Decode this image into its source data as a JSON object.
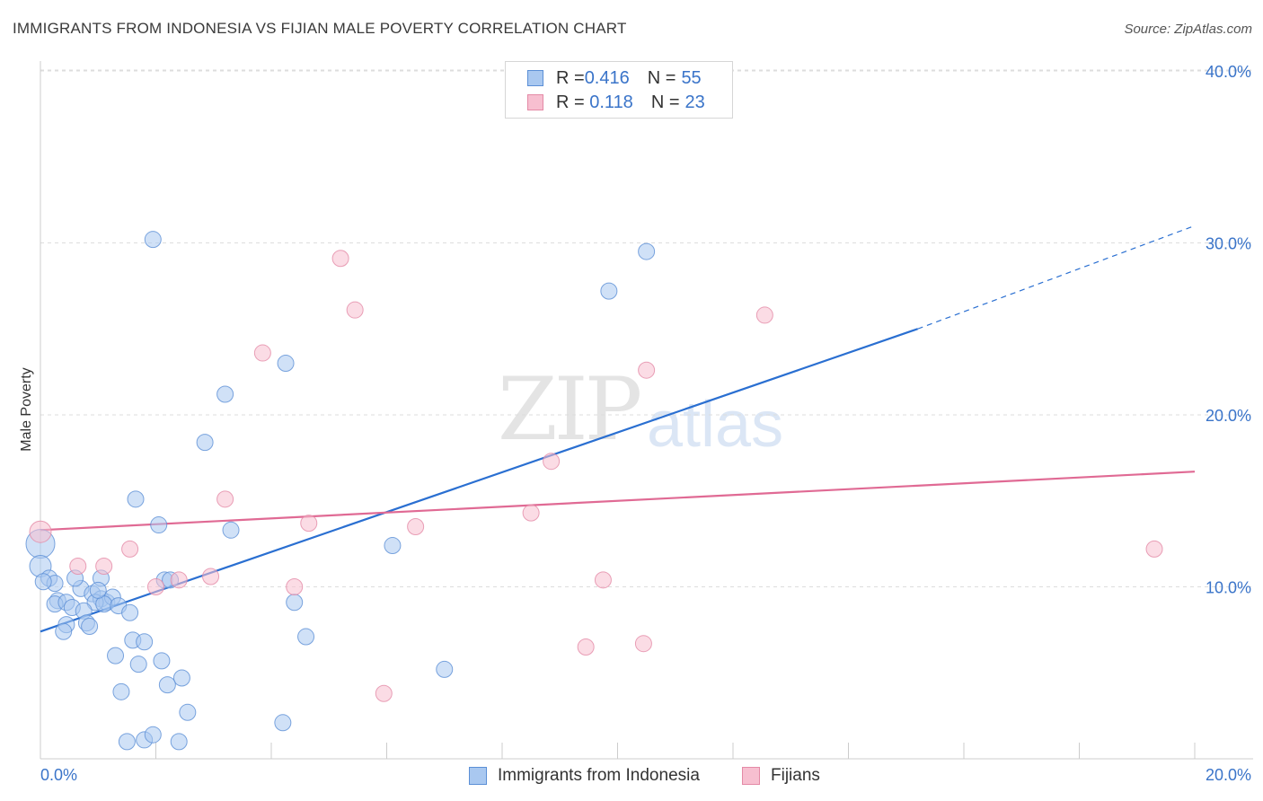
{
  "title": "IMMIGRANTS FROM INDONESIA VS FIJIAN MALE POVERTY CORRELATION CHART",
  "source": "Source: ZipAtlas.com",
  "watermark": {
    "zip": "ZIP",
    "atlas": "atlas"
  },
  "legend": {
    "rows": [
      {
        "r_label": "R = ",
        "r_value": "0.416",
        "n_label": "N = ",
        "n_value": "55"
      },
      {
        "r_label": "R = ",
        "r_value": " 0.118",
        "n_label": "N = ",
        "n_value": "23"
      }
    ]
  },
  "bottom_legend": [
    "Immigrants from Indonesia",
    "Fijians"
  ],
  "colors": {
    "indonesia_fill": "#a9c8f0",
    "indonesia_stroke": "#5b8fd6",
    "indonesia_line": "#2a6fd1",
    "fijian_fill": "#f7bfd0",
    "fijian_stroke": "#e48aa6",
    "fijian_line": "#e06a94",
    "tick_label": "#3a74c9",
    "grid": "#dddddd"
  },
  "chart_data": {
    "type": "scatter",
    "title": "IMMIGRANTS FROM INDONESIA VS FIJIAN MALE POVERTY CORRELATION CHART",
    "xlabel": "",
    "ylabel": "Male Poverty",
    "xlim": [
      0,
      20
    ],
    "ylim": [
      0,
      40
    ],
    "x_tick_labels": [
      "0.0%",
      "20.0%"
    ],
    "y_ticks": [
      10,
      20,
      30,
      40
    ],
    "y_tick_labels": [
      "10.0%",
      "20.0%",
      "30.0%",
      "40.0%"
    ],
    "grid": true,
    "legend_position": "top-center",
    "series": [
      {
        "name": "Immigrants from Indonesia",
        "r": 0.416,
        "n": 55,
        "trend": {
          "x0": 0,
          "y0": 7.4,
          "x1": 15.2,
          "y1": 25.0,
          "dashed_to_x": 20,
          "dashed_to_y": 31.0
        },
        "points": [
          [
            0.0,
            12.5,
            16
          ],
          [
            0.0,
            11.2,
            12
          ],
          [
            0.15,
            10.5,
            9
          ],
          [
            0.25,
            10.2,
            9
          ],
          [
            0.3,
            9.2,
            9
          ],
          [
            0.25,
            9.0,
            9
          ],
          [
            0.45,
            9.1,
            9
          ],
          [
            0.55,
            8.8,
            9
          ],
          [
            0.7,
            9.9,
            9
          ],
          [
            0.9,
            9.6,
            9
          ],
          [
            1.05,
            9.3,
            9
          ],
          [
            1.15,
            9.1,
            9
          ],
          [
            1.25,
            9.4,
            9
          ],
          [
            0.95,
            9.1,
            9
          ],
          [
            1.1,
            9.0,
            9
          ],
          [
            1.35,
            8.9,
            9
          ],
          [
            1.55,
            8.5,
            9
          ],
          [
            0.75,
            8.6,
            9
          ],
          [
            0.45,
            7.8,
            9
          ],
          [
            0.4,
            7.4,
            9
          ],
          [
            0.8,
            7.9,
            9
          ],
          [
            0.85,
            7.7,
            9
          ],
          [
            1.05,
            10.5,
            9
          ],
          [
            0.6,
            10.5,
            9
          ],
          [
            1.6,
            6.9,
            9
          ],
          [
            1.8,
            6.8,
            9
          ],
          [
            1.3,
            6.0,
            9
          ],
          [
            1.7,
            5.5,
            9
          ],
          [
            2.1,
            5.7,
            9
          ],
          [
            1.4,
            3.9,
            9
          ],
          [
            2.45,
            4.7,
            9
          ],
          [
            2.2,
            4.3,
            9
          ],
          [
            2.55,
            2.7,
            9
          ],
          [
            1.5,
            1.0,
            9
          ],
          [
            1.8,
            1.1,
            9
          ],
          [
            1.95,
            1.4,
            9
          ],
          [
            2.4,
            1.0,
            9
          ],
          [
            2.15,
            10.4,
            9
          ],
          [
            2.25,
            10.4,
            9
          ],
          [
            1.65,
            15.1,
            9
          ],
          [
            2.05,
            13.6,
            9
          ],
          [
            3.3,
            13.3,
            9
          ],
          [
            2.85,
            18.4,
            9
          ],
          [
            3.2,
            21.2,
            9
          ],
          [
            1.95,
            30.2,
            9
          ],
          [
            4.25,
            23.0,
            9
          ],
          [
            4.4,
            9.1,
            9
          ],
          [
            4.6,
            7.1,
            9
          ],
          [
            4.2,
            2.1,
            9
          ],
          [
            6.1,
            12.4,
            9
          ],
          [
            7.0,
            5.2,
            9
          ],
          [
            9.85,
            27.2,
            9
          ],
          [
            10.5,
            29.5,
            9
          ],
          [
            1.0,
            9.8,
            9
          ],
          [
            0.05,
            10.3,
            9
          ]
        ]
      },
      {
        "name": "Fijians",
        "r": 0.118,
        "n": 23,
        "trend": {
          "x0": 0,
          "y0": 13.3,
          "x1": 20,
          "y1": 16.7
        },
        "points": [
          [
            0.0,
            13.2,
            12
          ],
          [
            0.65,
            11.2,
            9
          ],
          [
            1.1,
            11.2,
            9
          ],
          [
            1.55,
            12.2,
            9
          ],
          [
            2.0,
            10.0,
            9
          ],
          [
            2.4,
            10.4,
            9
          ],
          [
            2.95,
            10.6,
            9
          ],
          [
            3.2,
            15.1,
            9
          ],
          [
            3.85,
            23.6,
            9
          ],
          [
            4.4,
            10.0,
            9
          ],
          [
            4.65,
            13.7,
            9
          ],
          [
            5.2,
            29.1,
            9
          ],
          [
            5.45,
            26.1,
            9
          ],
          [
            5.95,
            3.8,
            9
          ],
          [
            6.5,
            13.5,
            9
          ],
          [
            8.5,
            14.3,
            9
          ],
          [
            8.85,
            17.3,
            9
          ],
          [
            9.45,
            6.5,
            9
          ],
          [
            9.75,
            10.4,
            9
          ],
          [
            10.45,
            6.7,
            9
          ],
          [
            10.5,
            22.6,
            9
          ],
          [
            12.55,
            25.8,
            9
          ],
          [
            19.3,
            12.2,
            9
          ]
        ]
      }
    ]
  }
}
